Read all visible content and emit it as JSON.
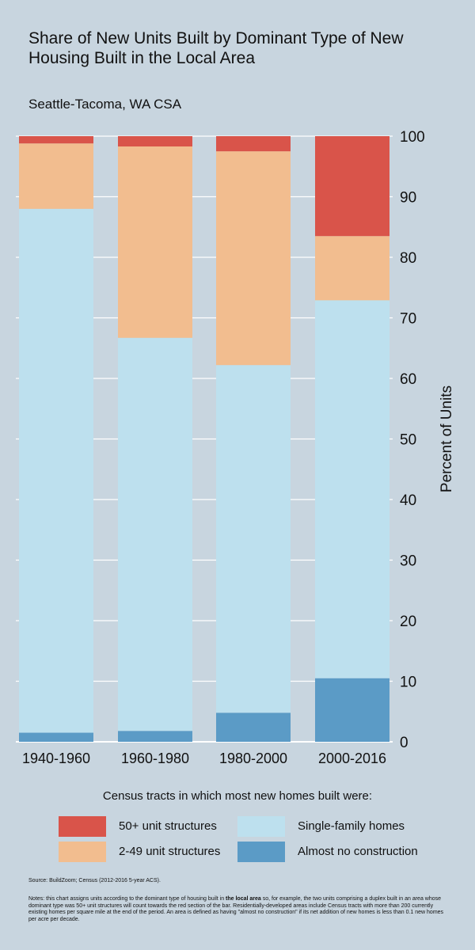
{
  "title": "Share of New Units Built by Dominant Type of New Housing Built in the Local Area",
  "subtitle": "Seattle-Tacoma, WA CSA",
  "colors": {
    "background": "#c8d5df",
    "fifty_plus": "#d9544a",
    "two_to_49": "#f2bd8f",
    "single_family": "#bde0ee",
    "almost_none": "#5b9bc6",
    "grid": "#ffffff"
  },
  "chart_data": {
    "type": "bar",
    "stacked": true,
    "categories": [
      "1940-1960",
      "1960-1980",
      "1980-2000",
      "2000-2016"
    ],
    "series": [
      {
        "name": "Almost no construction",
        "color_key": "almost_none",
        "values": [
          1.5,
          1.8,
          4.8,
          10.5
        ]
      },
      {
        "name": "Single-family homes",
        "color_key": "single_family",
        "values": [
          86.5,
          64.9,
          57.4,
          62.4
        ]
      },
      {
        "name": "2-49 unit structures",
        "color_key": "two_to_49",
        "values": [
          10.8,
          31.6,
          35.3,
          10.6
        ]
      },
      {
        "name": "50+ unit structures",
        "color_key": "fifty_plus",
        "values": [
          1.2,
          1.7,
          2.5,
          16.5
        ]
      }
    ],
    "ylabel": "Percent of Units",
    "xlabel": "",
    "ylim": [
      0,
      100
    ],
    "yticks": [
      0,
      10,
      20,
      30,
      40,
      50,
      60,
      70,
      80,
      90,
      100
    ],
    "y_axis_side": "right",
    "grid": true
  },
  "legend": {
    "title": "Census tracts in which most new homes built were:",
    "items": [
      {
        "label": "50+ unit structures",
        "color_key": "fifty_plus"
      },
      {
        "label": "Single-family homes",
        "color_key": "single_family"
      },
      {
        "label": "2-49 unit structures",
        "color_key": "two_to_49"
      },
      {
        "label": "Almost no construction",
        "color_key": "almost_none"
      }
    ]
  },
  "source": "Source: BuildZoom; Census (2012-2016 5-year ACS).",
  "notes": {
    "before": "Notes: this chart assigns units according to the dominant type of housing built in ",
    "bold": "the local area",
    "after": " so, for example, the two units comprising a duplex built in an area whose dominant type was 50+ unit structures will count towards the red section of the bar. Residentially-developed areas include Census tracts with more than 200 currently existing homes per square mile at the end of the period. An area is defined as having \"almost no construction\" if its net addition of new homes is less than 0.1 new homes per acre per decade."
  }
}
